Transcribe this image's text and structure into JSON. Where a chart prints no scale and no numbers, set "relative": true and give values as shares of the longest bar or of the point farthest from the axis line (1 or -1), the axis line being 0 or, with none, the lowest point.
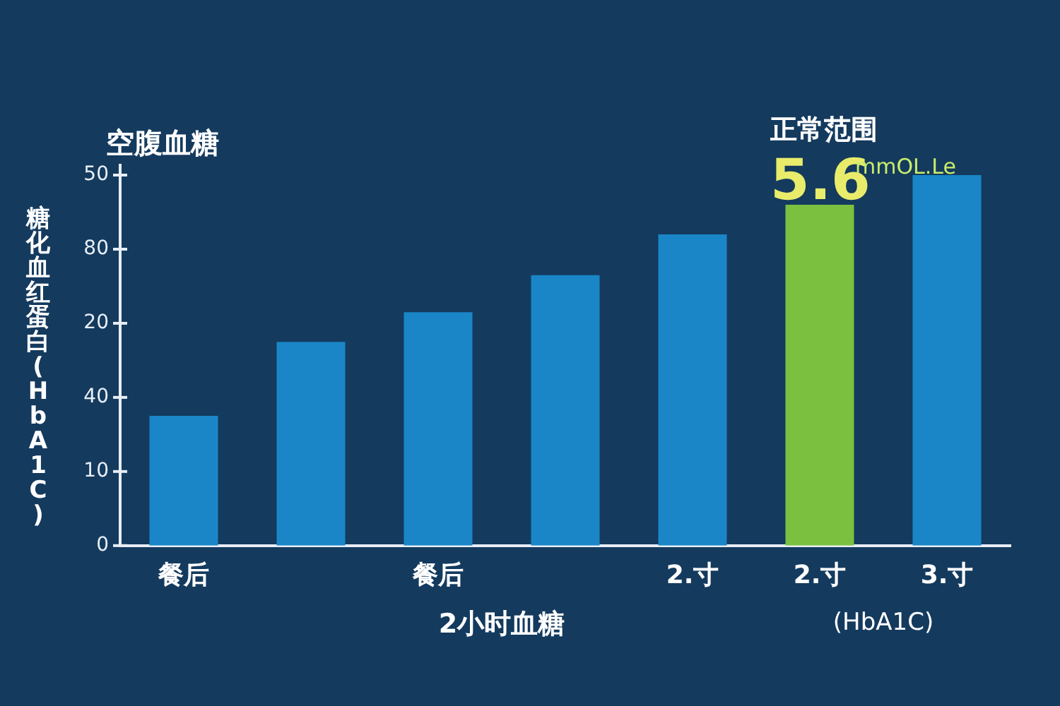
{
  "chart_data": {
    "type": "bar",
    "title": "空腹血糖",
    "xlabel": "2小时血糖",
    "ylabel": "糖化血红蛋白(HbA1C)",
    "categories": [
      "餐后",
      null,
      "餐后",
      null,
      "2.寸",
      "2.寸",
      "3.寸"
    ],
    "values": [
      0.35,
      0.55,
      0.63,
      0.73,
      0.84,
      0.92,
      1
    ],
    "relative": true,
    "colors": [
      "#1a86c8",
      "#1a86c8",
      "#1a86c8",
      "#1a86c8",
      "#1a86c8",
      "#7cc040",
      "#1a86c8"
    ],
    "annotations": [
      "正常范围",
      "5.6",
      "mmOL.Le",
      "(HbA1C)",
      "0",
      "10",
      "40",
      "20",
      "80",
      "50"
    ],
    "grid": false,
    "legend": false
  }
}
